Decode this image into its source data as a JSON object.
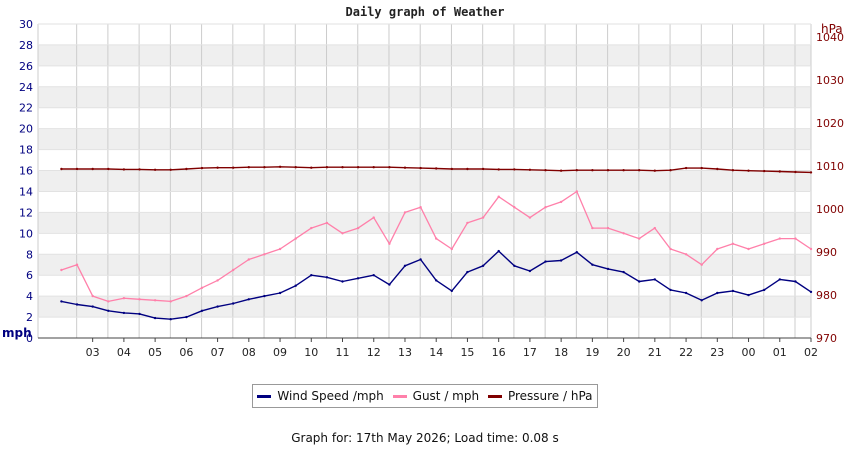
{
  "chart_data": {
    "type": "line",
    "title": "Daily graph of Weather",
    "left_axis": {
      "unit": "mph",
      "range": [
        0,
        30
      ],
      "ticks": [
        0,
        2,
        4,
        6,
        8,
        10,
        12,
        14,
        16,
        18,
        20,
        22,
        24,
        26,
        28,
        30
      ]
    },
    "right_axis": {
      "unit": "hPa",
      "range": [
        970,
        1043
      ],
      "ticks": [
        970,
        980,
        990,
        1000,
        1010,
        1020,
        1030,
        1040
      ]
    },
    "x_tick_labels": [
      "03",
      "04",
      "05",
      "06",
      "07",
      "08",
      "09",
      "10",
      "11",
      "12",
      "13",
      "14",
      "15",
      "16",
      "17",
      "18",
      "19",
      "20",
      "21",
      "22",
      "23",
      "00",
      "01",
      "02"
    ],
    "grid": true,
    "legend_position": "bottom",
    "x": [
      2,
      2.5,
      3,
      3.5,
      4,
      4.5,
      5,
      5.5,
      6,
      6.5,
      7,
      7.5,
      8,
      8.5,
      9,
      9.5,
      10,
      10.5,
      11,
      11.5,
      12,
      12.5,
      13,
      13.5,
      14,
      14.5,
      15,
      15.5,
      16,
      16.5,
      17,
      17.5,
      18,
      18.5,
      19,
      19.5,
      20,
      20.5,
      21,
      21.5,
      22,
      22.5,
      23,
      23.5,
      24,
      24.5,
      25,
      25.5,
      26
    ],
    "series": [
      {
        "name": "Wind Speed /mph",
        "axis": "left",
        "color": "#000080",
        "values": [
          3.5,
          3.2,
          3.0,
          2.6,
          2.4,
          2.3,
          1.9,
          1.8,
          2.0,
          2.6,
          3.0,
          3.3,
          3.7,
          4.0,
          4.3,
          5.0,
          6.0,
          5.8,
          5.4,
          5.7,
          6.0,
          5.1,
          6.9,
          7.5,
          5.5,
          4.5,
          6.3,
          6.9,
          8.3,
          6.9,
          6.4,
          7.3,
          7.4,
          8.2,
          7.0,
          6.6,
          6.3,
          5.4,
          5.6,
          4.6,
          4.3,
          3.6,
          4.3,
          4.5,
          4.1,
          4.6,
          5.6,
          5.4,
          4.4
        ]
      },
      {
        "name": "Gust / mph",
        "axis": "left",
        "color": "#ff80aa",
        "values": [
          6.5,
          7.0,
          4.0,
          3.5,
          3.8,
          3.7,
          3.6,
          3.5,
          4.0,
          4.8,
          5.5,
          6.5,
          7.5,
          8.0,
          8.5,
          9.5,
          10.5,
          11.0,
          10.0,
          10.5,
          11.5,
          9.0,
          12.0,
          12.5,
          9.5,
          8.5,
          11.0,
          11.5,
          13.5,
          12.5,
          11.5,
          12.5,
          13.0,
          14.0,
          10.5,
          10.5,
          10.0,
          9.5,
          10.5,
          8.5,
          8.0,
          7.0,
          8.5,
          9.0,
          8.5,
          9.0,
          9.5,
          9.5,
          8.5
        ]
      },
      {
        "name": "Pressure / hPa",
        "axis": "right",
        "color": "#800000",
        "values": [
          1009.3,
          1009.3,
          1009.3,
          1009.3,
          1009.2,
          1009.2,
          1009.1,
          1009.1,
          1009.3,
          1009.5,
          1009.6,
          1009.6,
          1009.7,
          1009.7,
          1009.8,
          1009.7,
          1009.6,
          1009.7,
          1009.7,
          1009.7,
          1009.7,
          1009.7,
          1009.6,
          1009.5,
          1009.4,
          1009.3,
          1009.3,
          1009.3,
          1009.2,
          1009.2,
          1009.1,
          1009.0,
          1008.9,
          1009.0,
          1009.0,
          1009.0,
          1009.0,
          1009.0,
          1008.9,
          1009.0,
          1009.5,
          1009.5,
          1009.3,
          1009.0,
          1008.9,
          1008.8,
          1008.7,
          1008.6,
          1008.5
        ]
      }
    ]
  },
  "legend": {
    "wind": "Wind Speed /mph",
    "gust": "Gust / mph",
    "pressure": "Pressure / hPa"
  },
  "colors": {
    "left_axis_text": "#000080",
    "right_axis_text": "#800000",
    "band": "#efefef",
    "grid": "#cccccc"
  },
  "footer": "Graph for: 17th May 2026; Load time: 0.08 s"
}
